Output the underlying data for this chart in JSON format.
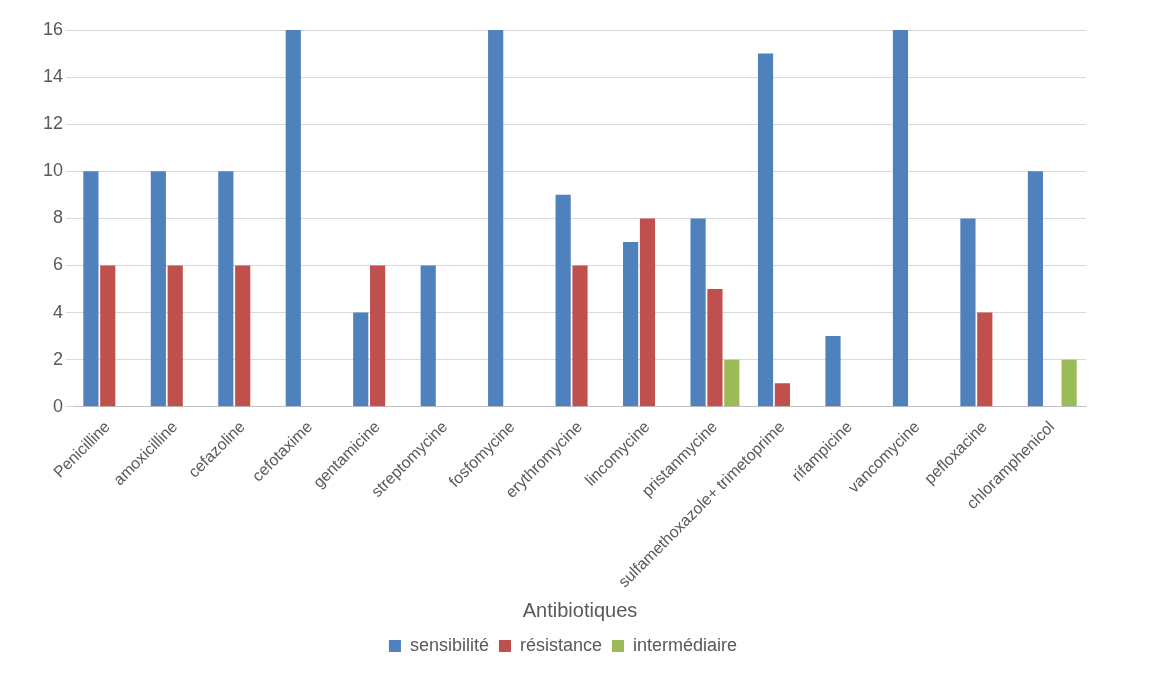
{
  "chart_data": {
    "type": "bar",
    "xlabel": "Antibiotiques",
    "categories": [
      "Penicilline",
      "amoxicilline",
      "cefazoline",
      "cefotaxime",
      "gentamicine",
      "streptomycine",
      "fosfomycine",
      "erythromycine",
      "lincomycine",
      "pristanmycine",
      "sulfamethoxazole+ trimetoprime",
      "rifampicine",
      "vancomycine",
      "pefloxacine",
      "chloramphenicol"
    ],
    "series": [
      {
        "name": "sensibilité",
        "color": "#4f81bd",
        "values": [
          10,
          10,
          10,
          16,
          4,
          6,
          16,
          9,
          7,
          8,
          15,
          3,
          16,
          8,
          10
        ]
      },
      {
        "name": "résistance",
        "color": "#c0504d",
        "values": [
          6,
          6,
          6,
          0,
          6,
          0,
          0,
          6,
          8,
          5,
          1,
          0,
          0,
          4,
          0
        ]
      },
      {
        "name": "intermédiaire",
        "color": "#9bbb59",
        "values": [
          0,
          0,
          0,
          0,
          0,
          0,
          0,
          0,
          0,
          2,
          0,
          0,
          0,
          0,
          2
        ]
      }
    ],
    "ylim": [
      0,
      16
    ],
    "yticks": [
      0,
      2,
      4,
      6,
      8,
      10,
      12,
      14,
      16
    ],
    "grid": "y",
    "legend": "bottom"
  }
}
